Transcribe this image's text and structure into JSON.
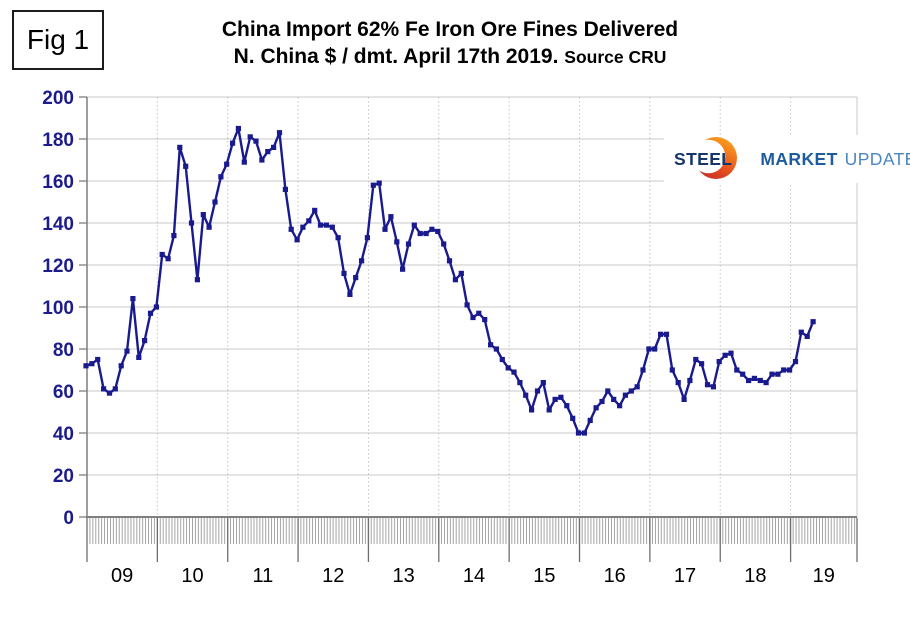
{
  "figure_label": "Fig 1",
  "title": {
    "line1": "China Import 62% Fe Iron Ore Fines Delivered",
    "line2_main": "N. China $ / dmt. April 17th 2019.",
    "line2_source": "Source CRU"
  },
  "logo": {
    "word1": "STEEL",
    "word2": "MARKET",
    "word3": "UPDATE",
    "steel_color": "#16356b",
    "market_color": "#1d5c9e",
    "update_color": "#4a86c0",
    "crescent_top_color": "#f7941d",
    "crescent_bottom_color": "#c0272d"
  },
  "chart_data": {
    "type": "line",
    "title": "China Import 62% Fe Iron Ore Fines Delivered N. China $ / dmt",
    "as_of_date": "April 17th 2019",
    "source": "CRU",
    "frequency": "monthly",
    "x_start": "2008-12",
    "x_end": "2019-04",
    "ylim": [
      0,
      200
    ],
    "ytick_interval": 20,
    "y_tick_labels": [
      "200",
      "180",
      "160",
      "140",
      "120",
      "100",
      "80",
      "60",
      "40",
      "20",
      "0"
    ],
    "x_tick_labels": [
      "09",
      "10",
      "11",
      "12",
      "13",
      "14",
      "15",
      "16",
      "17",
      "18",
      "19"
    ],
    "grid": {
      "horizontal": "solid light gray every 20",
      "vertical": "dotted light gray at year boundaries"
    },
    "legend_position": "none",
    "line_color": "#1a1a8f",
    "axis_label_color": "#1c1c8c",
    "series": [
      {
        "name": "Iron ore fines 62% Fe price ($/dmt)",
        "values": [
          72,
          73,
          75,
          61,
          59,
          61,
          72,
          79,
          104,
          76,
          84,
          97,
          100,
          125,
          123,
          134,
          176,
          167,
          140,
          113,
          144,
          138,
          150,
          162,
          168,
          178,
          185,
          169,
          181,
          179,
          170,
          174,
          176,
          183,
          156,
          137,
          132,
          138,
          141,
          146,
          139,
          139,
          138,
          133,
          116,
          106,
          114,
          122,
          133,
          158,
          159,
          137,
          143,
          131,
          118,
          130,
          139,
          135,
          135,
          137,
          136,
          130,
          122,
          113,
          116,
          101,
          95,
          97,
          94,
          82,
          80,
          75,
          71,
          69,
          64,
          58,
          51,
          60,
          64,
          51,
          56,
          57,
          53,
          47,
          40,
          40,
          46,
          52,
          55,
          60,
          56,
          53,
          58,
          60,
          62,
          70,
          80,
          80,
          87,
          87,
          70,
          64,
          56,
          65,
          75,
          73,
          63,
          62,
          74,
          77,
          78,
          70,
          68,
          65,
          66,
          65,
          64,
          68,
          68,
          70,
          70,
          74,
          88,
          86,
          93
        ]
      }
    ]
  }
}
